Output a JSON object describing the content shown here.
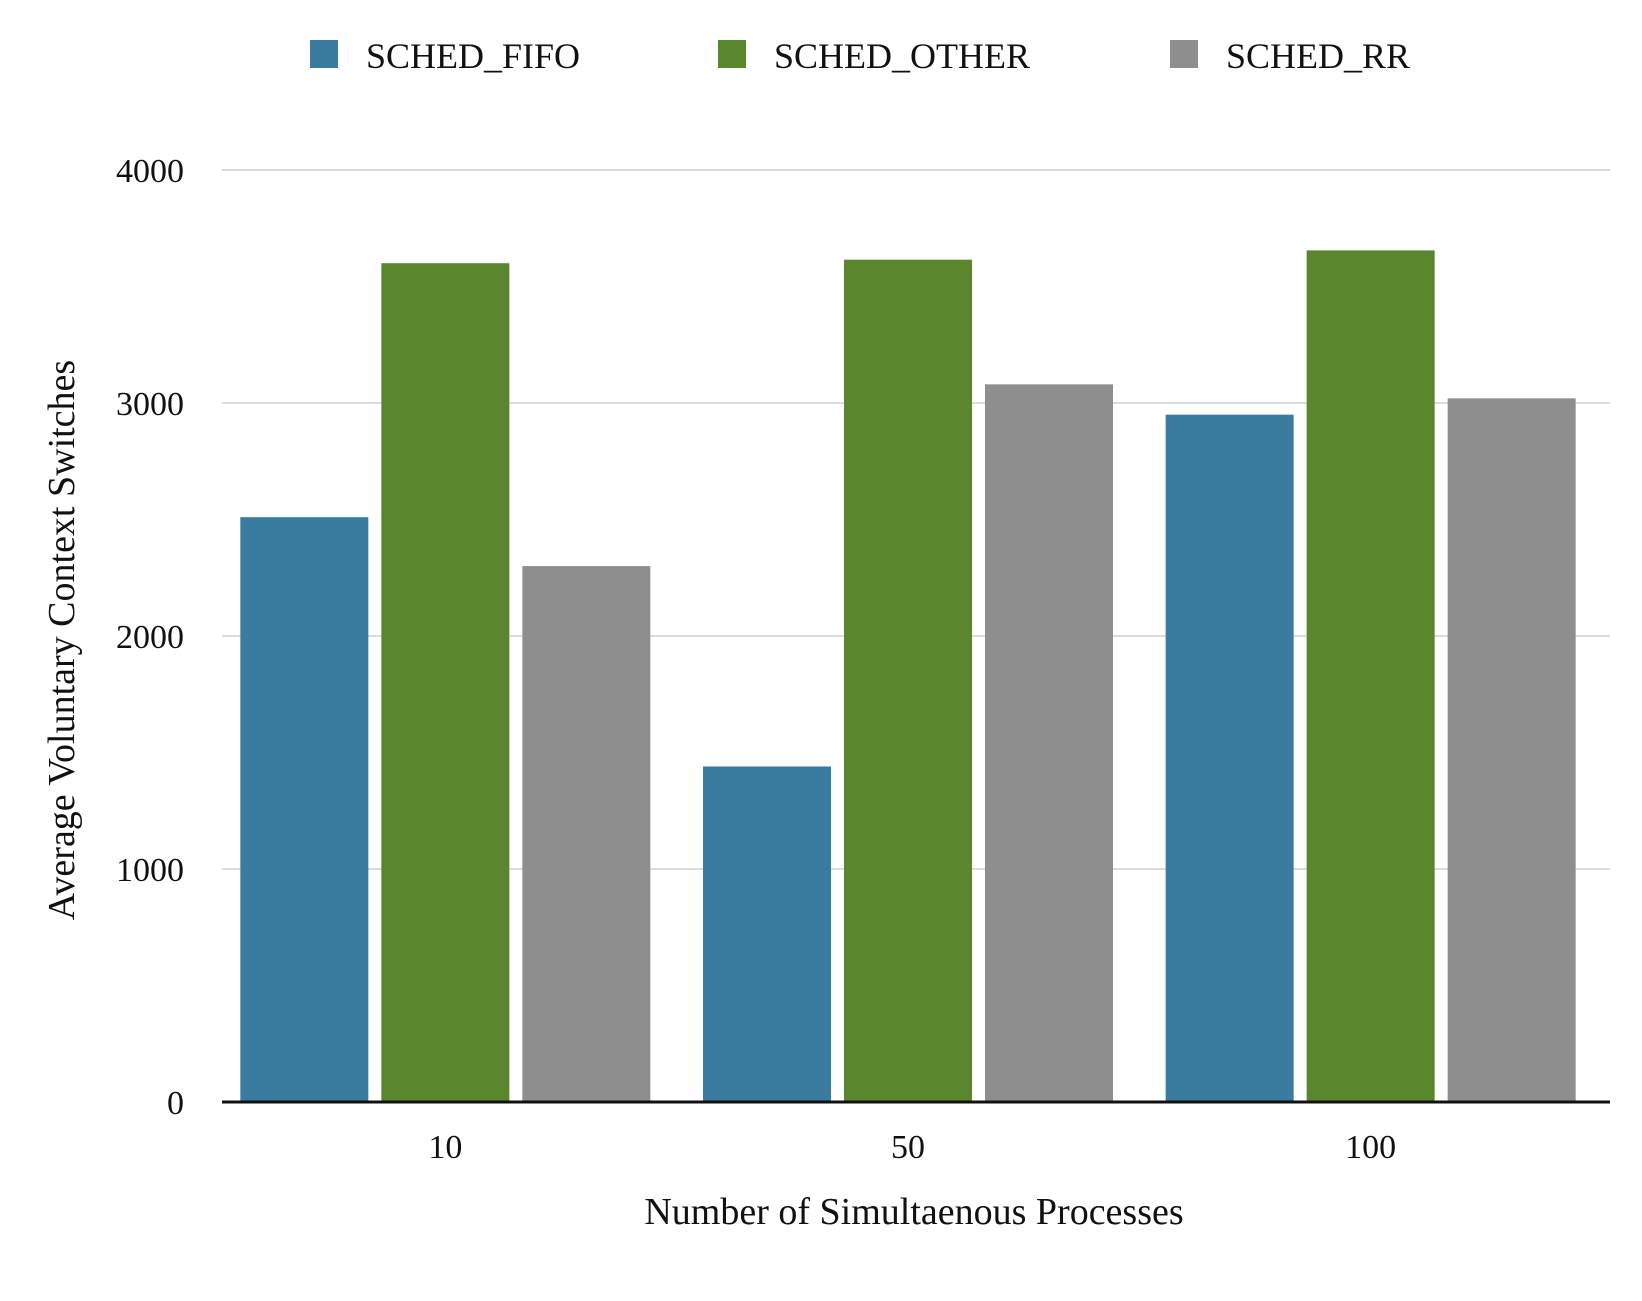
{
  "chart_data": {
    "type": "bar",
    "categories": [
      "10",
      "50",
      "100"
    ],
    "series": [
      {
        "name": "SCHED_FIFO",
        "color": "#3a7ca0",
        "values": [
          2510,
          1440,
          2950
        ]
      },
      {
        "name": "SCHED_OTHER",
        "color": "#5a862e",
        "values": [
          3600,
          3615,
          3655
        ]
      },
      {
        "name": "SCHED_RR",
        "color": "#8e8e8e",
        "values": [
          2300,
          3080,
          3020
        ]
      }
    ],
    "title": "",
    "xlabel": "Number of Simultaenous Processes",
    "ylabel": "Average Voluntary Context Switches",
    "ylim": [
      0,
      4000
    ],
    "yticks": [
      0,
      1000,
      2000,
      3000,
      4000
    ],
    "grid": true,
    "legend_position": "top-center"
  }
}
